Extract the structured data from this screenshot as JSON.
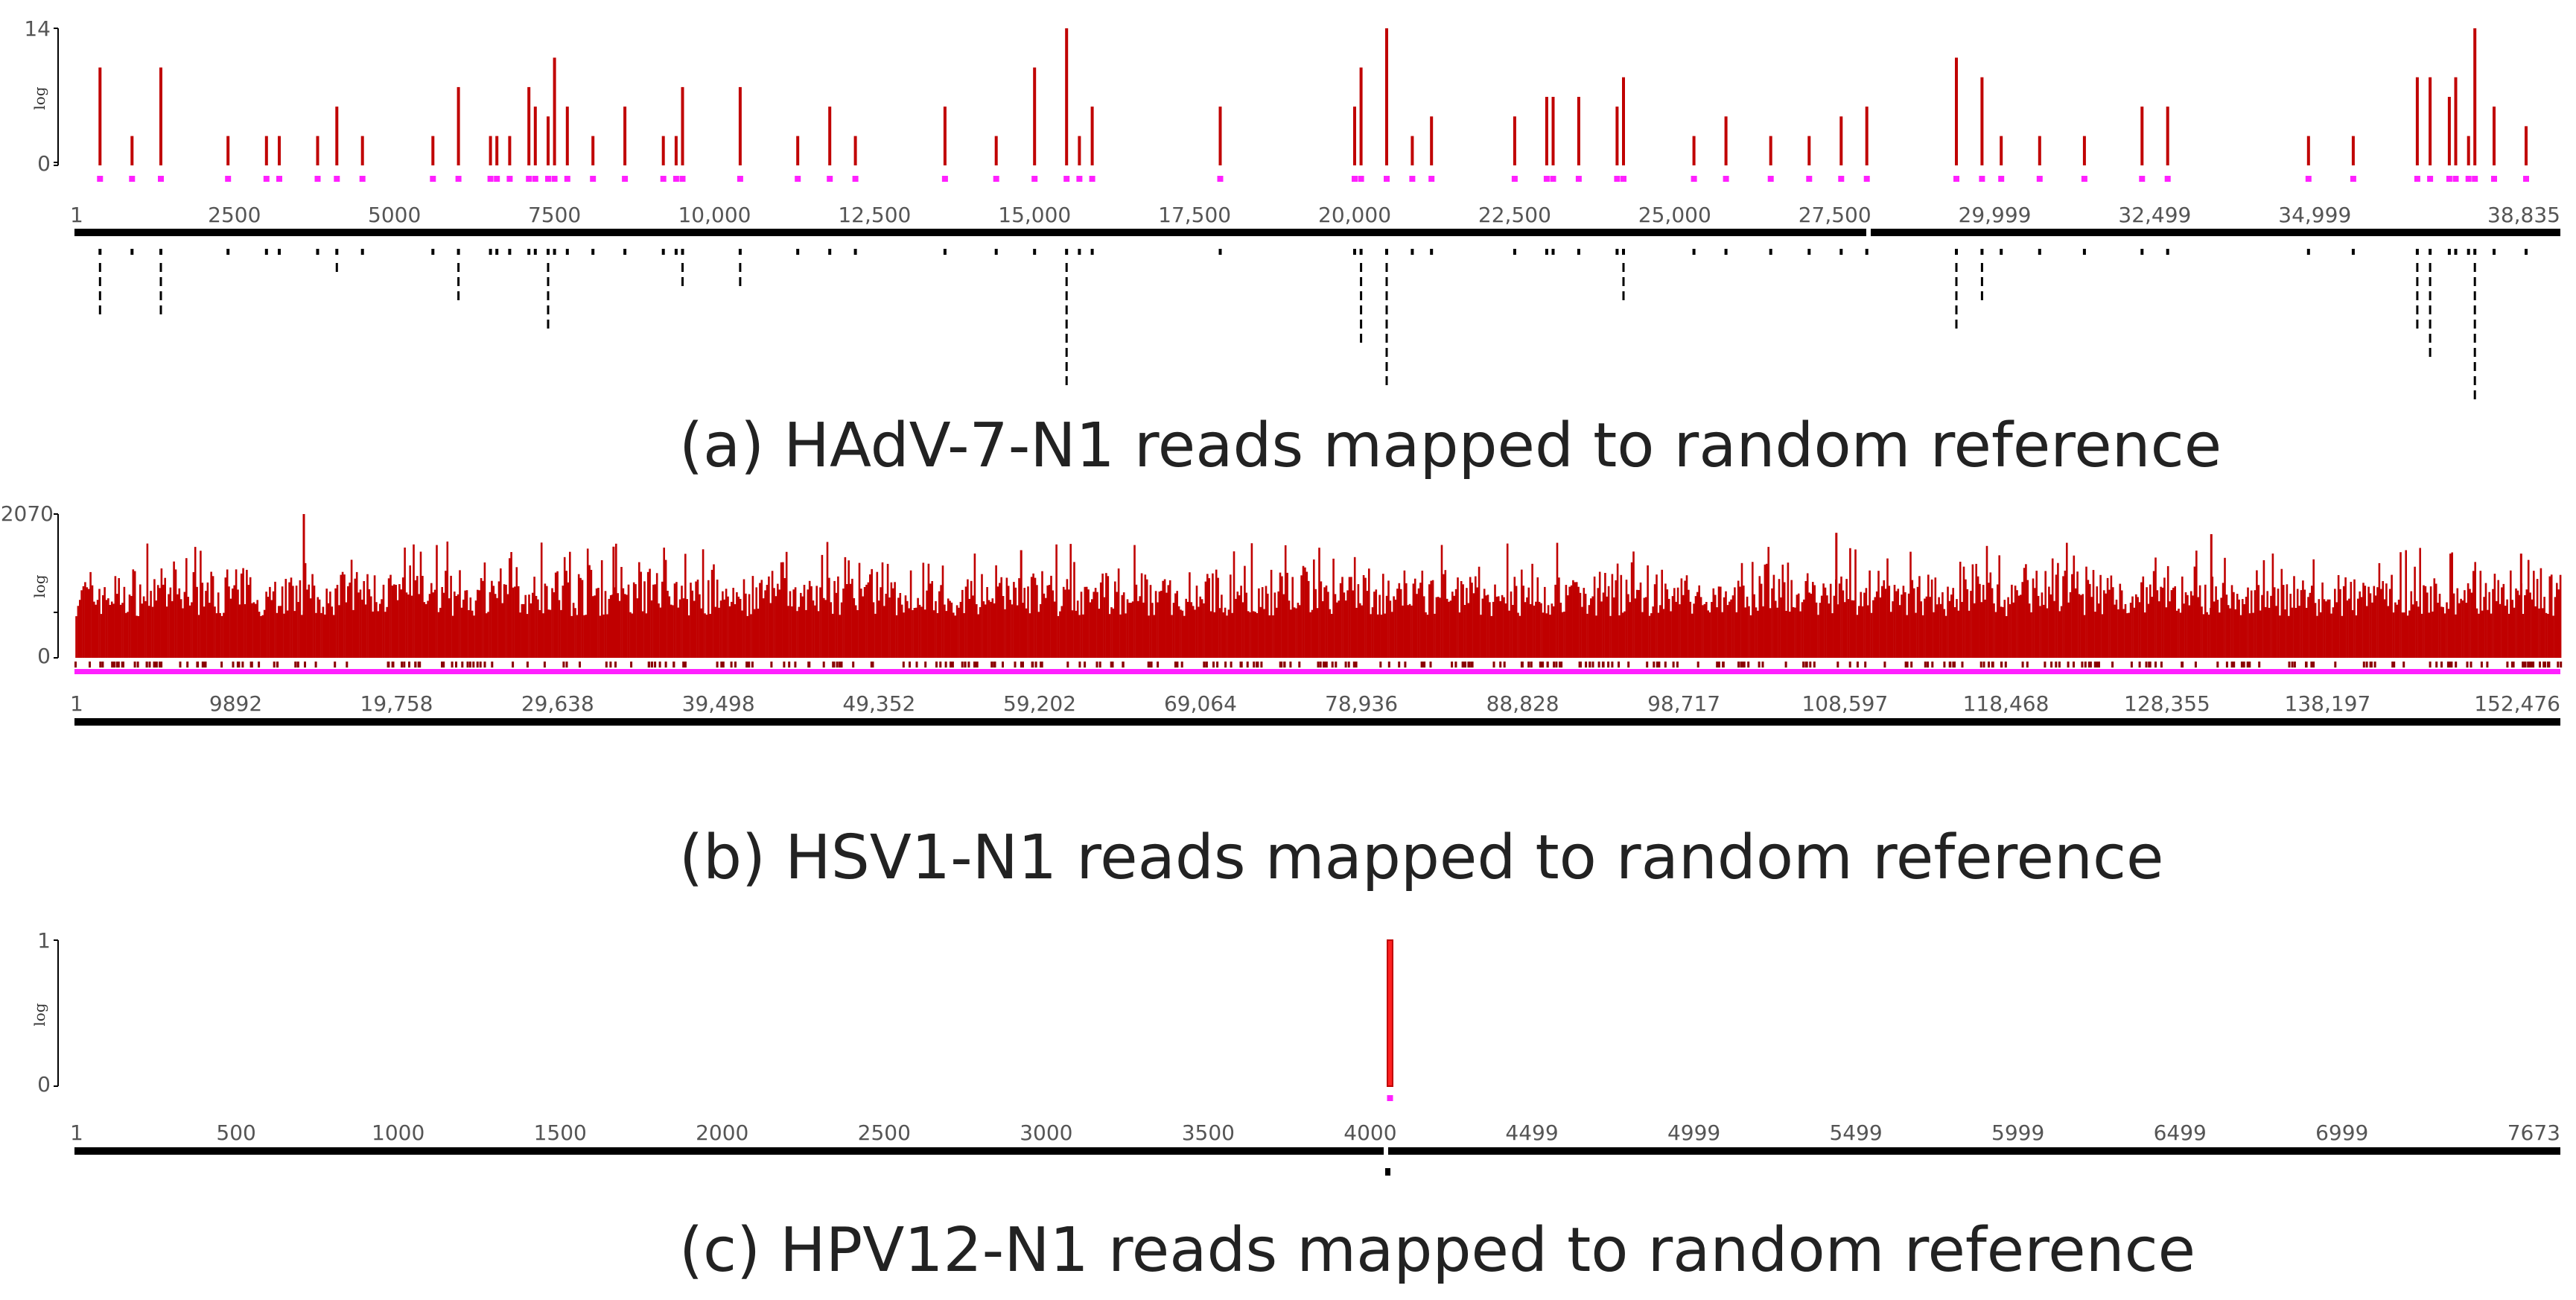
{
  "colors": {
    "coverage": "#c00000",
    "coverage_hi": "#ff2020",
    "marker": "#ff20ff",
    "axis": "#000000",
    "reads": "#000000"
  },
  "chart_data": [
    {
      "type": "bar",
      "id": "panel-a",
      "caption": "(a) HAdV-7-N1 reads mapped to random reference",
      "ylabel": "log",
      "y_ticks": [
        "14",
        "0"
      ],
      "ylim": [
        0,
        14
      ],
      "xlim": [
        1,
        38835
      ],
      "x_tick_labels": [
        "1",
        "2500",
        "5000",
        "7500",
        "10,000",
        "12,500",
        "15,000",
        "17,500",
        "20,000",
        "22,500",
        "25,000",
        "27,500",
        "29,999",
        "32,499",
        "34,999",
        "38,835"
      ],
      "x_tick_values": [
        1,
        2500,
        5000,
        7500,
        10000,
        12500,
        15000,
        17500,
        20000,
        22500,
        25000,
        27500,
        29999,
        32499,
        34999,
        38835
      ],
      "coverage_points": [
        [
          400,
          10
        ],
        [
          900,
          3
        ],
        [
          1350,
          10
        ],
        [
          2400,
          3
        ],
        [
          3000,
          3
        ],
        [
          3200,
          3
        ],
        [
          3800,
          3
        ],
        [
          4100,
          6
        ],
        [
          4500,
          3
        ],
        [
          5600,
          3
        ],
        [
          6000,
          8
        ],
        [
          6500,
          3
        ],
        [
          6600,
          3
        ],
        [
          6800,
          3
        ],
        [
          7100,
          8
        ],
        [
          7200,
          6
        ],
        [
          7400,
          5
        ],
        [
          7500,
          11
        ],
        [
          7700,
          6
        ],
        [
          8100,
          3
        ],
        [
          8600,
          6
        ],
        [
          9200,
          3
        ],
        [
          9400,
          3
        ],
        [
          9500,
          8
        ],
        [
          10400,
          8
        ],
        [
          11300,
          3
        ],
        [
          11800,
          6
        ],
        [
          12200,
          3
        ],
        [
          13600,
          6
        ],
        [
          14400,
          3
        ],
        [
          15000,
          10
        ],
        [
          15500,
          14
        ],
        [
          15700,
          3
        ],
        [
          15900,
          6
        ],
        [
          17900,
          6
        ],
        [
          20000,
          6
        ],
        [
          20100,
          10
        ],
        [
          20500,
          14
        ],
        [
          20900,
          3
        ],
        [
          21200,
          5
        ],
        [
          22500,
          5
        ],
        [
          23000,
          7
        ],
        [
          23100,
          7
        ],
        [
          23500,
          7
        ],
        [
          24100,
          6
        ],
        [
          24200,
          9
        ],
        [
          25300,
          3
        ],
        [
          25800,
          5
        ],
        [
          26500,
          3
        ],
        [
          27100,
          3
        ],
        [
          27600,
          5
        ],
        [
          28000,
          6
        ],
        [
          29400,
          11
        ],
        [
          29800,
          9
        ],
        [
          30100,
          3
        ],
        [
          30700,
          3
        ],
        [
          31400,
          3
        ],
        [
          32300,
          6
        ],
        [
          32700,
          6
        ],
        [
          34900,
          3
        ],
        [
          35600,
          3
        ],
        [
          36600,
          9
        ],
        [
          36800,
          9
        ],
        [
          37100,
          7
        ],
        [
          37200,
          9
        ],
        [
          37400,
          3
        ],
        [
          37500,
          14
        ],
        [
          37800,
          6
        ],
        [
          38300,
          4
        ]
      ],
      "reads_bottom_depth": [
        [
          400,
          5
        ],
        [
          1350,
          5
        ],
        [
          4100,
          2
        ],
        [
          6000,
          4
        ],
        [
          7400,
          6
        ],
        [
          9500,
          3
        ],
        [
          10400,
          3
        ],
        [
          15500,
          10
        ],
        [
          20100,
          7
        ],
        [
          20500,
          10
        ],
        [
          24200,
          4
        ],
        [
          29400,
          6
        ],
        [
          29800,
          4
        ],
        [
          36600,
          6
        ],
        [
          36800,
          8
        ],
        [
          37500,
          11
        ]
      ]
    },
    {
      "type": "bar",
      "id": "panel-b",
      "caption": "(b) HSV1-N1    reads mapped to random reference",
      "ylabel": "log",
      "y_ticks": [
        "2070",
        "0"
      ],
      "ylim": [
        0,
        2070
      ],
      "xlim": [
        1,
        152476
      ],
      "x_tick_labels": [
        "1",
        "9892",
        "19,758",
        "29,638",
        "39,498",
        "49,352",
        "59,202",
        "69,064",
        "78,936",
        "88,828",
        "98,717",
        "108,597",
        "118,468",
        "128,355",
        "138,197",
        "152,476"
      ],
      "x_tick_values": [
        1,
        9892,
        19758,
        29638,
        39498,
        49352,
        59202,
        69064,
        78936,
        88828,
        98717,
        108597,
        118468,
        128355,
        138197,
        152476
      ],
      "coverage_points": [
        [
          14000,
          2070
        ],
        [
          33000,
          1600
        ],
        [
          58000,
          1550
        ],
        [
          108000,
          1800
        ],
        [
          131000,
          1780
        ],
        [
          150000,
          1500
        ]
      ],
      "typical_coverage_range": [
        600,
        1400
      ]
    },
    {
      "type": "bar",
      "id": "panel-c",
      "caption": "(c) HPV12-N1  reads mapped to random reference",
      "ylabel": "log",
      "y_ticks": [
        "1",
        "0"
      ],
      "ylim": [
        0,
        1
      ],
      "xlim": [
        1,
        7673
      ],
      "x_tick_labels": [
        "1",
        "500",
        "1000",
        "1500",
        "2000",
        "2500",
        "3000",
        "3500",
        "4000",
        "4499",
        "4999",
        "5499",
        "5999",
        "6499",
        "6999",
        "7673"
      ],
      "x_tick_values": [
        1,
        500,
        1000,
        1500,
        2000,
        2500,
        3000,
        3500,
        4000,
        4499,
        4999,
        5499,
        5999,
        6499,
        6999,
        7673
      ],
      "coverage_points": [
        [
          4061,
          1
        ]
      ]
    }
  ]
}
